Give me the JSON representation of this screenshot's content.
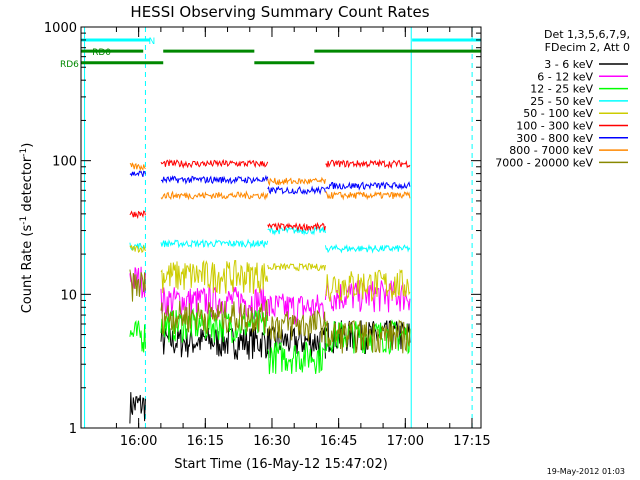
{
  "chart_data": {
    "type": "line",
    "title": "HESSI Observing Summary Count Rates",
    "xlabel": "Start Time (16-May-12 15:47:02)",
    "ylabel_main": "Count Rate (s",
    "ylabel_sup1": "-1",
    "ylabel_mid": " detector",
    "ylabel_sup2": "-1",
    "ylabel_end": ")",
    "ylog": true,
    "ylim": [
      1,
      1000
    ],
    "xlim_minutes": [
      0,
      90
    ],
    "x_ticks": [
      {
        "label": "16:00",
        "t": 12.97
      },
      {
        "label": "16:15",
        "t": 27.97
      },
      {
        "label": "16:30",
        "t": 42.97
      },
      {
        "label": "16:45",
        "t": 57.97
      },
      {
        "label": "17:00",
        "t": 72.97
      },
      {
        "label": "17:15",
        "t": 87.97
      }
    ],
    "y_ticks": [
      {
        "label": "1",
        "v": 1
      },
      {
        "label": "10",
        "v": 10
      },
      {
        "label": "100",
        "v": 100
      },
      {
        "label": "1000",
        "v": 1000
      }
    ],
    "legend_header": [
      "Det 1,3,5,6,7,9,",
      "FDecim 2, Att 0"
    ],
    "series": [
      {
        "name": "3 - 6 keV",
        "color": "#000000"
      },
      {
        "name": "6 - 12 keV",
        "color": "#ff00ff"
      },
      {
        "name": "12 - 25 keV",
        "color": "#00ff00"
      },
      {
        "name": "25 - 50 keV",
        "color": "#00ffff"
      },
      {
        "name": "50 - 100 keV",
        "color": "#cccc00"
      },
      {
        "name": "100 - 300 keV",
        "color": "#ff0000"
      },
      {
        "name": "300 - 800 keV",
        "color": "#0000ff"
      },
      {
        "name": "800 - 7000 keV",
        "color": "#ff8800"
      },
      {
        "name": "7000 - 20000 keV",
        "color": "#888800"
      }
    ],
    "segments": [
      {
        "t0": 11.0,
        "t1": 14.5,
        "v": {
          "3 - 6 keV": 1.5,
          "6 - 12 keV": 13,
          "12 - 25 keV": 5,
          "25 - 50 keV": 23,
          "50 - 100 keV": 22,
          "100 - 300 keV": 40,
          "300 - 800 keV": 80,
          "800 - 7000 keV": 90,
          "7000 - 20000 keV": 12
        }
      },
      {
        "t0": 18.0,
        "t1": 42.0,
        "v": {
          "3 - 6 keV": 4.5,
          "6 - 12 keV": 9,
          "12 - 25 keV": 6,
          "25 - 50 keV": 24,
          "50 - 100 keV": 14,
          "100 - 300 keV": 95,
          "300 - 800 keV": 72,
          "800 - 7000 keV": 55,
          "7000 - 20000 keV": 7
        }
      },
      {
        "t0": 42.0,
        "t1": 55.0,
        "v": {
          "3 - 6 keV": 4.5,
          "6 - 12 keV": 8,
          "12 - 25 keV": 3.5,
          "25 - 50 keV": 30,
          "50 - 100 keV": 16,
          "100 - 300 keV": 32,
          "300 - 800 keV": 60,
          "800 - 7000 keV": 70,
          "7000 - 20000 keV": 6
        }
      },
      {
        "t0": 55.0,
        "t1": 74.0,
        "v": {
          "3 - 6 keV": 5,
          "6 - 12 keV": 10,
          "12 - 25 keV": 5,
          "25 - 50 keV": 22,
          "50 - 100 keV": 12,
          "100 - 300 keV": 95,
          "300 - 800 keV": 65,
          "800 - 7000 keV": 55,
          "7000 - 20000 keV": 5
        }
      }
    ],
    "state_bars": [
      {
        "label": "N",
        "color": "#00ffff",
        "level": 800,
        "ranges": [
          [
            0,
            15.5
          ],
          [
            74.5,
            90
          ]
        ]
      },
      {
        "label": "RD0",
        "color": "#008800",
        "level": 660,
        "ranges": [
          [
            0,
            14
          ],
          [
            18.5,
            39
          ],
          [
            52.5,
            90
          ]
        ]
      },
      {
        "label": "RD6",
        "color": "#008800",
        "level": 540,
        "ranges": [
          [
            0,
            18.5
          ],
          [
            39,
            52.5
          ]
        ]
      }
    ],
    "vlines": [
      {
        "t": 0.8,
        "style": "solid",
        "color": "#00ffff"
      },
      {
        "t": 14.5,
        "style": "dashed",
        "color": "#00ffff"
      },
      {
        "t": 74.3,
        "style": "solid",
        "color": "#00ffff"
      },
      {
        "t": 88.0,
        "style": "dashed",
        "color": "#00ffff"
      }
    ],
    "footer": "19-May-2012 01:03"
  }
}
